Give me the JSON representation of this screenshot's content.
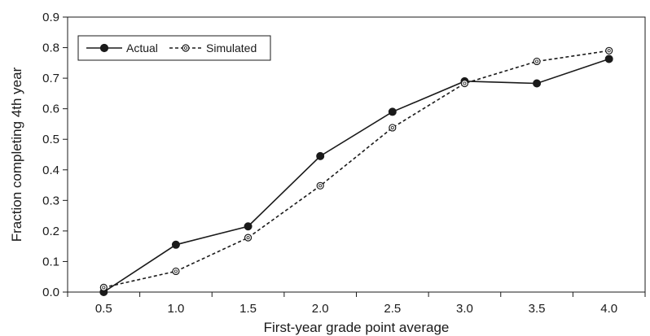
{
  "chart_data": {
    "type": "line",
    "title": "",
    "xlabel": "First-year grade point average",
    "ylabel": "Fraction completing 4th year",
    "x": [
      0.5,
      1.0,
      1.5,
      2.0,
      2.5,
      3.0,
      3.5,
      4.0
    ],
    "x_tick_labels": [
      "0.5",
      "1.0",
      "1.5",
      "2.0",
      "2.5",
      "3.0",
      "3.5",
      "4.0"
    ],
    "y_tick_labels": [
      "0.0",
      "0.1",
      "0.2",
      "0.3",
      "0.4",
      "0.5",
      "0.6",
      "0.7",
      "0.8",
      "0.9"
    ],
    "ylim": [
      0,
      0.9
    ],
    "grid": false,
    "legend_position": "top-left",
    "series": [
      {
        "name": "Actual",
        "marker": "filled-circle",
        "line_style": "solid",
        "color": "#1a1a1a",
        "values": [
          0.0,
          0.155,
          0.215,
          0.445,
          0.59,
          0.69,
          0.683,
          0.763
        ]
      },
      {
        "name": "Simulated",
        "marker": "open-circle",
        "line_style": "dashed",
        "color": "#1a1a1a",
        "values": [
          0.015,
          0.068,
          0.178,
          0.348,
          0.538,
          0.683,
          0.755,
          0.79
        ]
      }
    ]
  }
}
